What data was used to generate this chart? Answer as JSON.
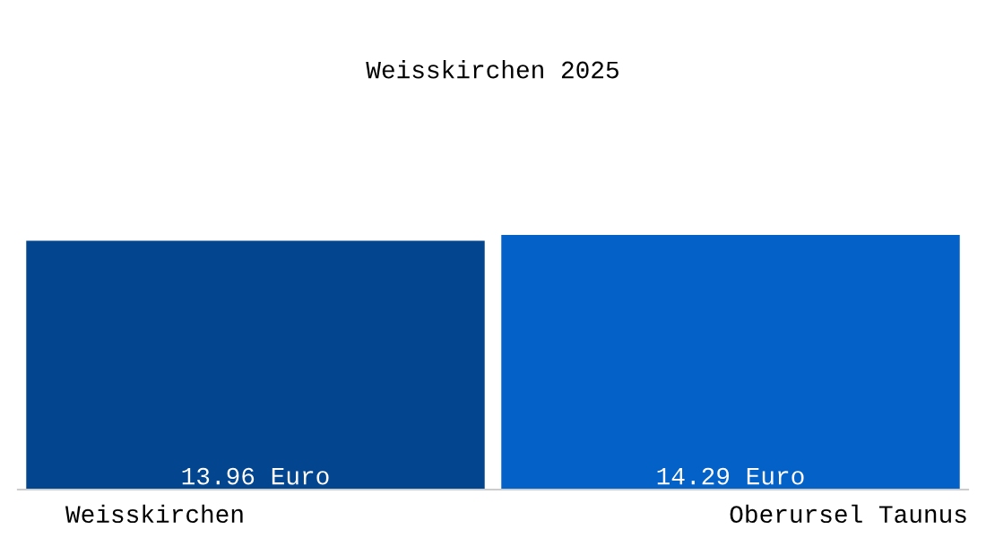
{
  "chart_data": {
    "type": "bar",
    "title": "Weisskirchen 2025",
    "categories": [
      "Weisskirchen",
      "Oberursel Taunus"
    ],
    "values": [
      13.96,
      14.29
    ],
    "colors": [
      "#03468f",
      "#0461c8"
    ],
    "value_labels": [
      "13.96 Euro",
      "14.29 Euro"
    ]
  }
}
